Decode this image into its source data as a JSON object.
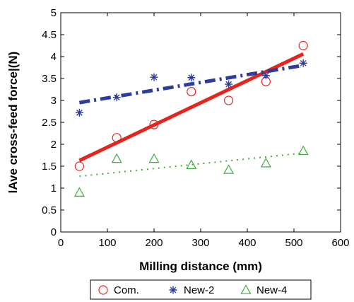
{
  "chart_data": {
    "type": "scatter",
    "title": "",
    "xlabel": "Milling distance (mm)",
    "ylabel": "lAve cross-feed force|(N)",
    "xlim": [
      0,
      600
    ],
    "ylim": [
      0,
      5
    ],
    "xticks": [
      0,
      100,
      200,
      300,
      400,
      500,
      600
    ],
    "yticks": [
      0,
      0.5,
      1,
      1.5,
      2,
      2.5,
      3,
      3.5,
      4,
      4.5,
      5
    ],
    "xtick_labels": [
      "0",
      "100",
      "200",
      "300",
      "400",
      "500",
      "600"
    ],
    "ytick_labels": [
      "0",
      "0.5",
      "1",
      "1.5",
      "2",
      "2.5",
      "3",
      "3.5",
      "4",
      "4.5",
      "5"
    ],
    "grid": false,
    "legend_position": "bottom",
    "series": [
      {
        "name": "Com.",
        "marker": "circle",
        "color": "#e8231d",
        "x": [
          40,
          120,
          200,
          280,
          360,
          440,
          520
        ],
        "y": [
          1.5,
          2.15,
          2.45,
          3.2,
          3.0,
          3.43,
          4.25
        ],
        "fit": {
          "x": [
            40,
            520
          ],
          "y": [
            1.63,
            4.06
          ],
          "line_style": "solid"
        }
      },
      {
        "name": "New-2",
        "marker": "asterisk",
        "color": "#2c3d9b",
        "x": [
          40,
          120,
          200,
          280,
          360,
          440,
          520
        ],
        "y": [
          2.72,
          3.07,
          3.53,
          3.52,
          3.37,
          3.57,
          3.85
        ],
        "fit": {
          "x": [
            40,
            520
          ],
          "y": [
            2.95,
            3.8
          ],
          "line_style": "dash-dot"
        }
      },
      {
        "name": "New-4",
        "marker": "triangle",
        "color": "#3fae3f",
        "x": [
          40,
          120,
          200,
          280,
          360,
          440,
          520
        ],
        "y": [
          0.9,
          1.67,
          1.67,
          1.53,
          1.42,
          1.57,
          1.85
        ],
        "fit": {
          "x": [
            40,
            520
          ],
          "y": [
            1.27,
            1.8
          ],
          "line_style": "dotted"
        }
      }
    ]
  }
}
